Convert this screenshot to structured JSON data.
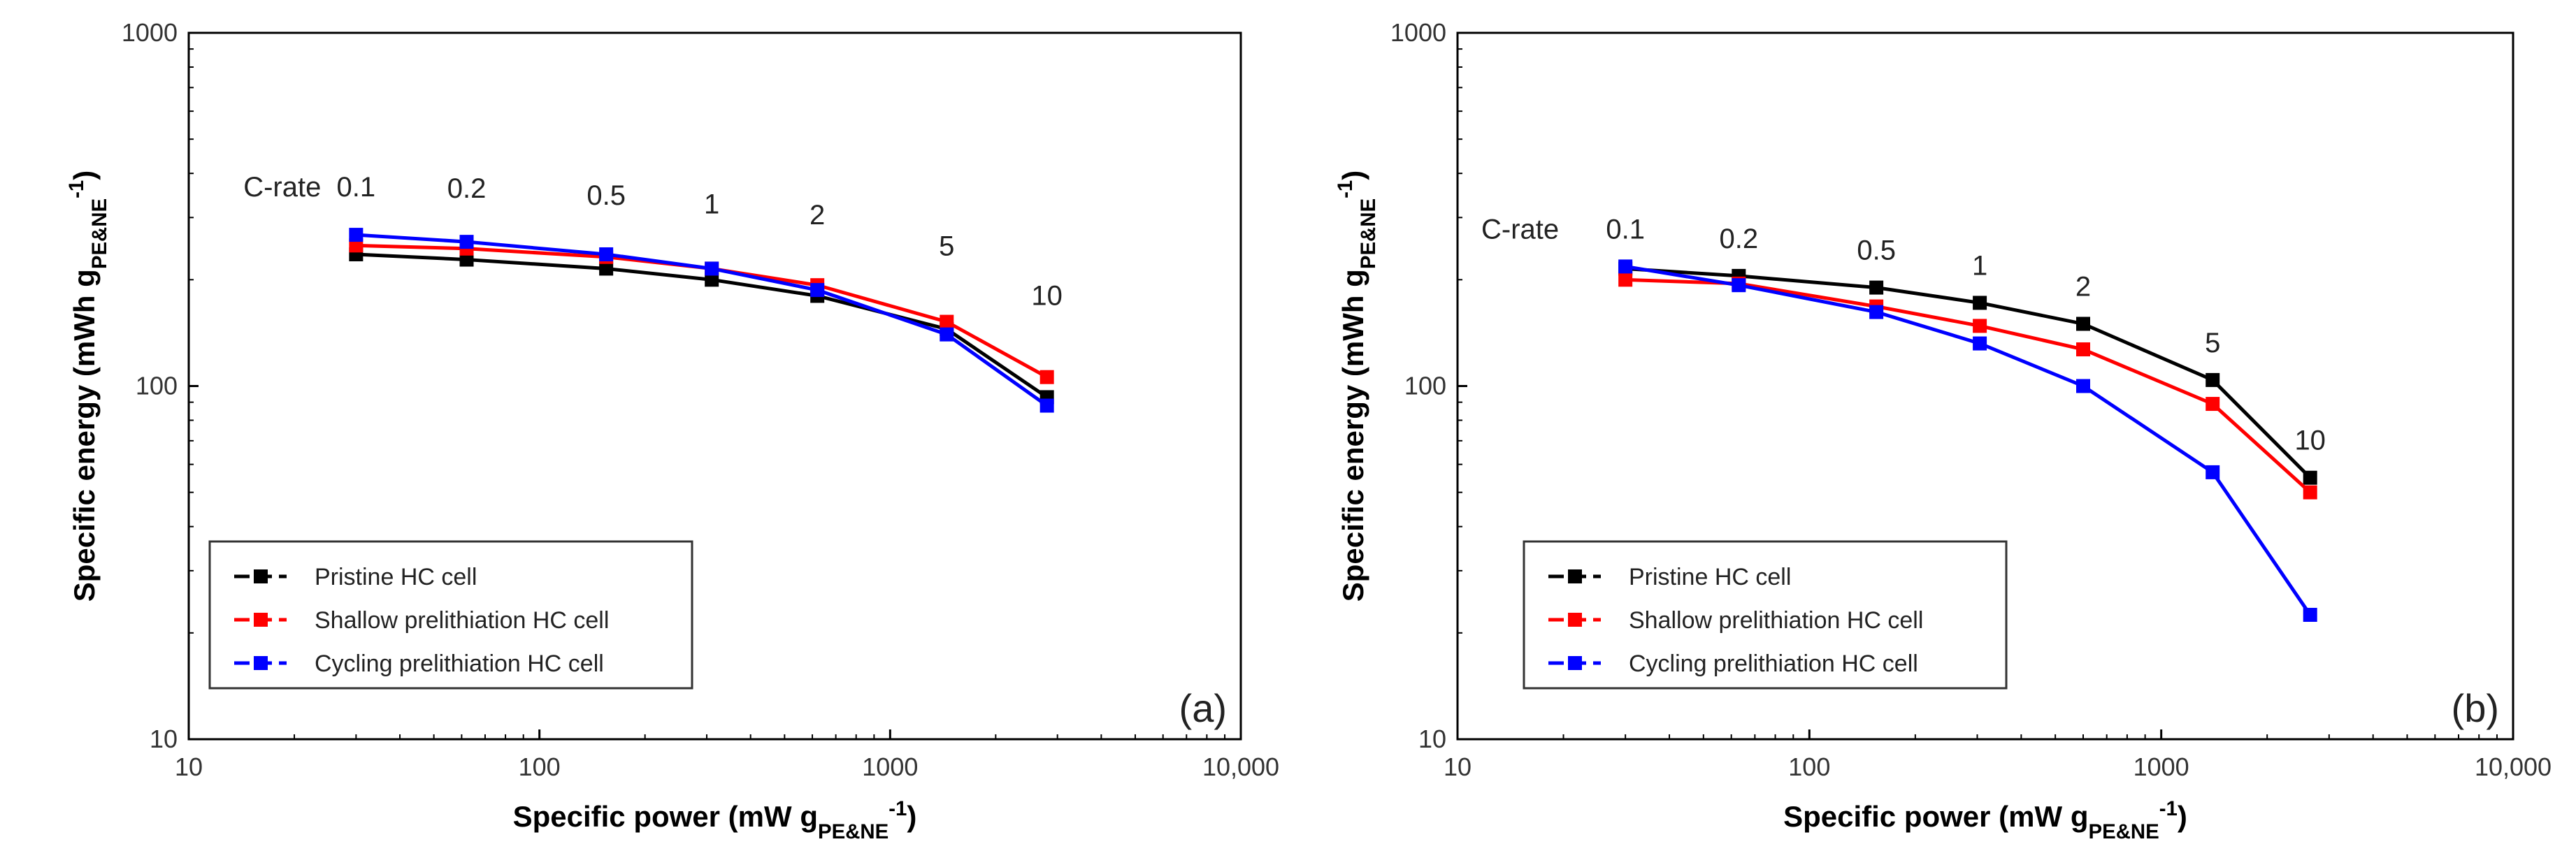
{
  "chart_data": [
    {
      "type": "line",
      "panel_label": "(a)",
      "xscale": "log",
      "yscale": "log",
      "xlim": [
        10,
        10000
      ],
      "ylim": [
        10,
        1000
      ],
      "xticks": [
        "10",
        "100",
        "1000",
        "10,000"
      ],
      "yticks": [
        "10",
        "100",
        "1000"
      ],
      "xlabel": {
        "main": "Specific power (mW g",
        "sub": "PE&NE",
        "sup": "-1",
        "end": ")"
      },
      "ylabel": {
        "main": "Specific energy (mWh g",
        "sub": "PE&NE",
        "sup": "-1",
        "end": ")"
      },
      "crate_title": "C-rate",
      "crate_labels": [
        "0.1",
        "0.2",
        "0.5",
        "1",
        "2",
        "5",
        "10"
      ],
      "legend_position": "bottom-left",
      "series": [
        {
          "name": "Pristine HC cell",
          "color": "#000000",
          "x": [
            30,
            62,
            155,
            310,
            620,
            1450,
            2800
          ],
          "y": [
            236,
            228,
            215,
            200,
            180,
            145,
            93
          ]
        },
        {
          "name": "Shallow prelithiation HC cell",
          "color": "#ff0000",
          "x": [
            30,
            62,
            155,
            310,
            620,
            1450,
            2800
          ],
          "y": [
            250,
            245,
            232,
            215,
            193,
            152,
            106
          ]
        },
        {
          "name": "Cycling prelithiation HC cell",
          "color": "#0000ff",
          "x": [
            30,
            62,
            155,
            310,
            620,
            1450,
            2800
          ],
          "y": [
            268,
            256,
            236,
            215,
            187,
            140,
            88
          ]
        }
      ]
    },
    {
      "type": "line",
      "panel_label": "(b)",
      "xscale": "log",
      "yscale": "log",
      "xlim": [
        10,
        10000
      ],
      "ylim": [
        10,
        1000
      ],
      "xticks": [
        "10",
        "100",
        "1000",
        "10,000"
      ],
      "yticks": [
        "10",
        "100",
        "1000"
      ],
      "xlabel": {
        "main": "Specific power (mW g",
        "sub": "PE&NE",
        "sup": "-1",
        "end": ")"
      },
      "ylabel": {
        "main": "Specific energy (mWh g",
        "sub": "PE&NE",
        "sup": "-1",
        "end": ")"
      },
      "crate_title": "C-rate",
      "crate_labels": [
        "0.1",
        "0.2",
        "0.5",
        "1",
        "2",
        "5",
        "10"
      ],
      "legend_position": "bottom-left",
      "series": [
        {
          "name": "Pristine HC cell",
          "color": "#000000",
          "x": [
            30,
            63,
            155,
            305,
            600,
            1400,
            2650
          ],
          "y": [
            215,
            205,
            190,
            172,
            150,
            104,
            55
          ]
        },
        {
          "name": "Shallow prelithiation HC cell",
          "color": "#ff0000",
          "x": [
            30,
            63,
            155,
            305,
            600,
            1400,
            2650
          ],
          "y": [
            200,
            195,
            168,
            148,
            127,
            89,
            50
          ]
        },
        {
          "name": "Cycling prelithiation HC cell",
          "color": "#0000ff",
          "x": [
            30,
            63,
            155,
            305,
            600,
            1400,
            2650
          ],
          "y": [
            218,
            193,
            162,
            132,
            100,
            57,
            22.5
          ]
        }
      ]
    }
  ]
}
